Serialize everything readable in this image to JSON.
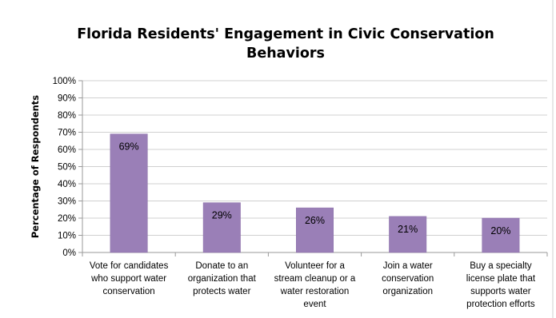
{
  "chart_data": {
    "type": "bar",
    "title": "Florida Residents' Engagement in Civic Conservation Behaviors",
    "title_lines": [
      "Florida Residents' Engagement in Civic Conservation",
      "Behaviors"
    ],
    "xlabel": "",
    "ylabel": "Percentage of Respondents",
    "ylim": [
      0,
      100
    ],
    "yticks": [
      "0%",
      "10%",
      "20%",
      "30%",
      "40%",
      "50%",
      "60%",
      "70%",
      "80%",
      "90%",
      "100%"
    ],
    "grid": true,
    "legend": "none",
    "bar_color": "#9a7fb7",
    "categories": [
      [
        "Vote for candidates",
        "who support water",
        "conservation"
      ],
      [
        "Donate to an",
        "organization that",
        "protects water"
      ],
      [
        "Volunteer for a",
        "stream cleanup or a",
        "water restoration",
        "event"
      ],
      [
        "Join a water",
        "conservation",
        "organization"
      ],
      [
        "Buy a specialty",
        "license plate that",
        "supports water",
        "protection efforts"
      ]
    ],
    "values": [
      69,
      29,
      26,
      21,
      20
    ],
    "data_labels": [
      "69%",
      "29%",
      "26%",
      "21%",
      "20%"
    ]
  }
}
